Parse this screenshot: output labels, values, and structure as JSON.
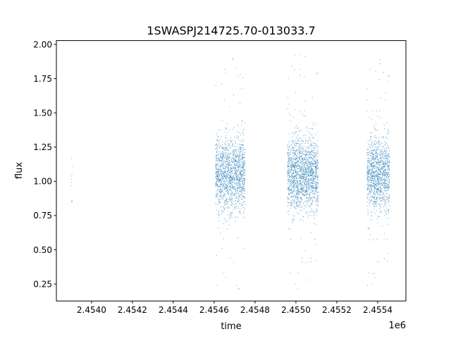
{
  "chart_data": {
    "type": "scatter",
    "title": "1SWASPJ214725.70-013033.7",
    "xlabel": "time",
    "ylabel": "flux",
    "x_offset_label": "1e6",
    "xlim": [
      2453828,
      2455538
    ],
    "ylim": [
      0.126,
      2.028
    ],
    "x_ticks": [
      2454000,
      2454200,
      2454400,
      2454600,
      2454800,
      2455000,
      2455200,
      2455400
    ],
    "x_tick_labels": [
      "2.4540",
      "2.4542",
      "2.4544",
      "2.4546",
      "2.4548",
      "2.4550",
      "2.4552",
      "2.4554"
    ],
    "y_ticks": [
      0.25,
      0.5,
      0.75,
      1.0,
      1.25,
      1.5,
      1.75,
      2.0
    ],
    "y_tick_labels": [
      "0.25",
      "0.50",
      "0.75",
      "1.00",
      "1.25",
      "1.50",
      "1.75",
      "2.00"
    ],
    "grid": false,
    "marker_color": "#1f77b4",
    "observing_seasons": [
      {
        "time_range": [
          2453900,
          2453906
        ],
        "flux_center": 1.0,
        "flux_range": [
          0.85,
          1.28
        ],
        "approx_points": 12
      },
      {
        "time_range": [
          2454607,
          2454752
        ],
        "flux_center": 1.05,
        "flux_range": [
          0.21,
          1.94
        ],
        "approx_points": 1500
      },
      {
        "time_range": [
          2454959,
          2455110
        ],
        "flux_center": 1.05,
        "flux_range": [
          0.21,
          1.93
        ],
        "approx_points": 1700
      },
      {
        "time_range": [
          2455348,
          2455459
        ],
        "flux_center": 1.05,
        "flux_range": [
          0.21,
          1.91
        ],
        "approx_points": 1200
      }
    ]
  }
}
